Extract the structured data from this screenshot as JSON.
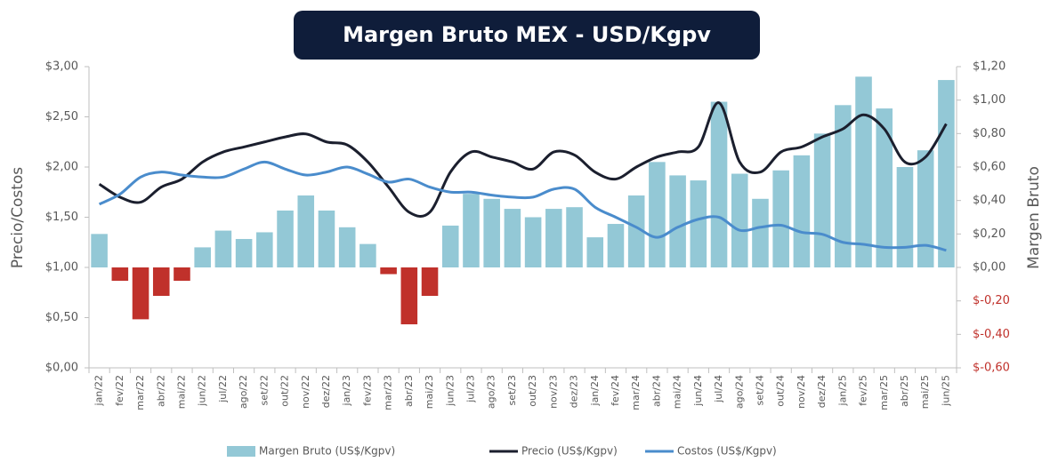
{
  "chart_data": {
    "type": "combo",
    "title": "Margen Bruto MEX - USD/Kgpv",
    "y_label": "Precio/Costos",
    "y2_label": "Margen Bruto",
    "categories": [
      "jan/22",
      "fev/22",
      "mar/22",
      "abr/22",
      "mai/22",
      "jun/22",
      "jul/22",
      "ago/22",
      "set/22",
      "out/22",
      "nov/22",
      "dez/22",
      "jan/23",
      "fev/23",
      "mar/23",
      "abr/23",
      "mai/23",
      "jun/23",
      "jul/23",
      "ago/23",
      "set/23",
      "out/23",
      "nov/23",
      "dez/23",
      "jan/24",
      "fev/24",
      "mar/24",
      "abr/24",
      "mai/24",
      "jun/24",
      "jul/24",
      "ago/24",
      "set/24",
      "out/24",
      "nov/24",
      "dez/24",
      "jan/25",
      "fev/25",
      "mar/25",
      "abr/25",
      "mai/25",
      "jun/25"
    ],
    "series": [
      {
        "name": "Margen Bruto (US$/Kgpv)",
        "type": "bar",
        "axis": "y2",
        "color": "#93c8d6",
        "negative_color": "#c0312b",
        "values": [
          0.2,
          -0.08,
          -0.31,
          -0.17,
          -0.08,
          0.12,
          0.22,
          0.17,
          0.21,
          0.34,
          0.43,
          0.34,
          0.24,
          0.14,
          -0.04,
          -0.34,
          -0.17,
          0.25,
          0.44,
          0.41,
          0.35,
          0.3,
          0.35,
          0.36,
          0.18,
          0.26,
          0.43,
          0.63,
          0.55,
          0.52,
          0.99,
          0.56,
          0.41,
          0.58,
          0.67,
          0.8,
          0.97,
          1.14,
          0.95,
          0.6,
          0.7,
          1.12
        ]
      },
      {
        "name": "Precio (US$/Kgpv)",
        "type": "line",
        "axis": "y",
        "color": "#1b1f2e",
        "values": [
          1.83,
          1.7,
          1.65,
          1.8,
          1.88,
          2.05,
          2.15,
          2.2,
          2.25,
          2.3,
          2.33,
          2.25,
          2.22,
          2.05,
          1.8,
          1.55,
          1.55,
          1.95,
          2.15,
          2.1,
          2.05,
          1.98,
          2.15,
          2.12,
          1.95,
          1.88,
          2.0,
          2.1,
          2.15,
          2.2,
          2.64,
          2.05,
          1.95,
          2.15,
          2.2,
          2.3,
          2.38,
          2.52,
          2.38,
          2.05,
          2.1,
          2.43
        ]
      },
      {
        "name": "Costos (US$/Kgpv)",
        "type": "line",
        "axis": "y",
        "color": "#4a8ccc",
        "values": [
          1.63,
          1.73,
          1.9,
          1.95,
          1.92,
          1.9,
          1.9,
          1.98,
          2.05,
          1.98,
          1.92,
          1.95,
          2.0,
          1.93,
          1.85,
          1.88,
          1.8,
          1.75,
          1.75,
          1.72,
          1.7,
          1.7,
          1.78,
          1.78,
          1.6,
          1.5,
          1.4,
          1.3,
          1.4,
          1.48,
          1.5,
          1.37,
          1.4,
          1.42,
          1.35,
          1.33,
          1.25,
          1.23,
          1.2,
          1.2,
          1.22,
          1.17
        ]
      }
    ],
    "ylim": [
      0,
      3
    ],
    "yticks": [
      {
        "value": 0,
        "label": "$0,00"
      },
      {
        "value": 0.5,
        "label": "$0,50"
      },
      {
        "value": 1,
        "label": "$1,00"
      },
      {
        "value": 1.5,
        "label": "$1,50"
      },
      {
        "value": 2,
        "label": "$2,00"
      },
      {
        "value": 2.5,
        "label": "$2,50"
      },
      {
        "value": 3,
        "label": "$3,00"
      }
    ],
    "y2lim": [
      -0.6,
      1.2
    ],
    "y2ticks": [
      {
        "value": -0.6,
        "label": "$-0,60"
      },
      {
        "value": -0.4,
        "label": "$-0,40"
      },
      {
        "value": -0.2,
        "label": "$-0,20"
      },
      {
        "value": 0,
        "label": "$0,00"
      },
      {
        "value": 0.2,
        "label": "$0,20"
      },
      {
        "value": 0.4,
        "label": "$0,40"
      },
      {
        "value": 0.6,
        "label": "$0,60"
      },
      {
        "value": 0.8,
        "label": "$0,80"
      },
      {
        "value": 1,
        "label": "$1,00"
      },
      {
        "value": 1.2,
        "label": "$1,20"
      }
    ],
    "grid": false,
    "legend": "bottom"
  }
}
